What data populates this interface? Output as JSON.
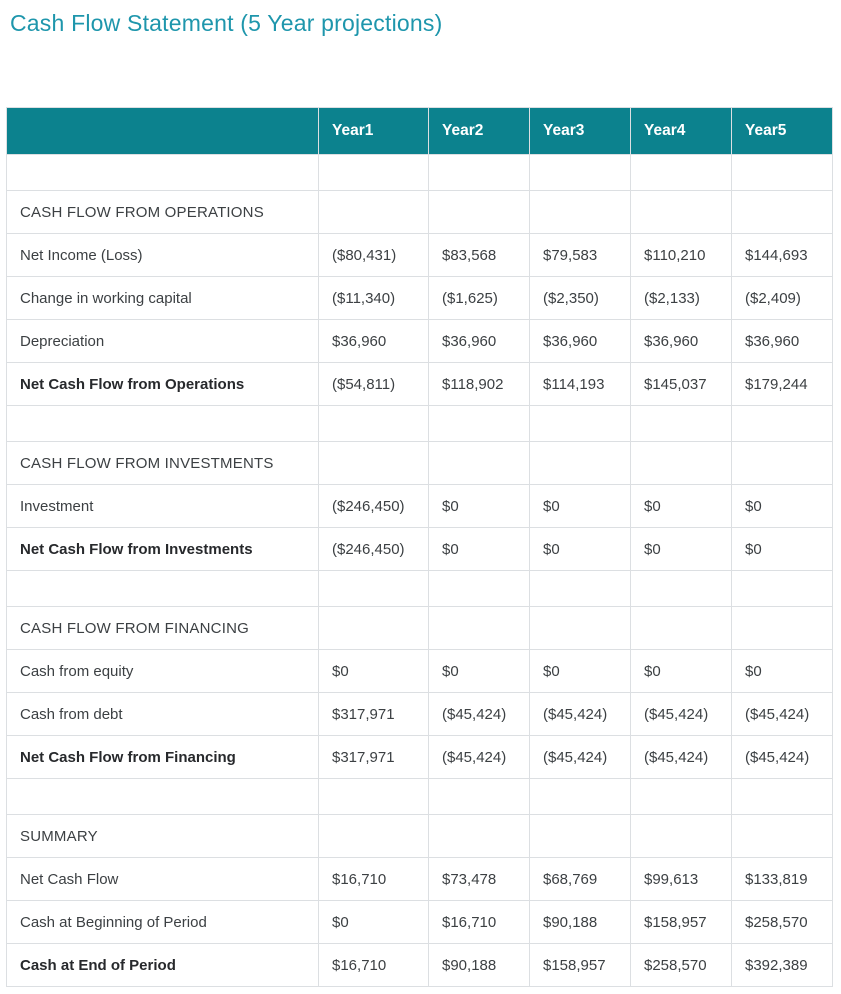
{
  "page": {
    "title": "Cash Flow Statement (5 Year projections)"
  },
  "colors": {
    "accent": "#0c828e",
    "title_text": "#1e96ac",
    "border": "#dcdfe2",
    "body_text": "#3c4043"
  },
  "table": {
    "columns": [
      "",
      "Year1",
      "Year2",
      "Year3",
      "Year4",
      "Year5"
    ],
    "rows": [
      {
        "type": "empty",
        "label": "",
        "values": [
          "",
          "",
          "",
          "",
          ""
        ]
      },
      {
        "type": "section",
        "label": "CASH FLOW FROM OPERATIONS",
        "values": [
          "",
          "",
          "",
          "",
          ""
        ]
      },
      {
        "type": "data",
        "label": "Net Income (Loss)",
        "values": [
          "($80,431)",
          "$83,568",
          "$79,583",
          "$110,210",
          "$144,693"
        ]
      },
      {
        "type": "data",
        "label": "Change in working capital",
        "values": [
          "($11,340)",
          "($1,625)",
          "($2,350)",
          "($2,133)",
          "($2,409)"
        ]
      },
      {
        "type": "data",
        "label": "Depreciation",
        "values": [
          "$36,960",
          "$36,960",
          "$36,960",
          "$36,960",
          "$36,960"
        ]
      },
      {
        "type": "total",
        "label": "Net Cash Flow from Operations",
        "values": [
          "($54,811)",
          "$118,902",
          "$114,193",
          "$145,037",
          "$179,244"
        ]
      },
      {
        "type": "empty",
        "label": "",
        "values": [
          "",
          "",
          "",
          "",
          ""
        ]
      },
      {
        "type": "section",
        "label": "CASH FLOW FROM INVESTMENTS",
        "values": [
          "",
          "",
          "",
          "",
          ""
        ]
      },
      {
        "type": "data",
        "label": "Investment",
        "values": [
          "($246,450)",
          "$0",
          "$0",
          "$0",
          "$0"
        ]
      },
      {
        "type": "total",
        "label": "Net Cash Flow from Investments",
        "values": [
          "($246,450)",
          "$0",
          "$0",
          "$0",
          "$0"
        ]
      },
      {
        "type": "empty",
        "label": "",
        "values": [
          "",
          "",
          "",
          "",
          ""
        ]
      },
      {
        "type": "section",
        "label": "CASH FLOW FROM FINANCING",
        "values": [
          "",
          "",
          "",
          "",
          ""
        ]
      },
      {
        "type": "data",
        "label": "Cash from equity",
        "values": [
          "$0",
          "$0",
          "$0",
          "$0",
          "$0"
        ]
      },
      {
        "type": "data",
        "label": "Cash from debt",
        "values": [
          "$317,971",
          "($45,424)",
          "($45,424)",
          "($45,424)",
          "($45,424)"
        ]
      },
      {
        "type": "total",
        "label": "Net Cash Flow from Financing",
        "values": [
          "$317,971",
          "($45,424)",
          "($45,424)",
          "($45,424)",
          "($45,424)"
        ]
      },
      {
        "type": "empty",
        "label": "",
        "values": [
          "",
          "",
          "",
          "",
          ""
        ]
      },
      {
        "type": "section",
        "label": "SUMMARY",
        "values": [
          "",
          "",
          "",
          "",
          ""
        ]
      },
      {
        "type": "data",
        "label": "Net Cash Flow",
        "values": [
          "$16,710",
          "$73,478",
          "$68,769",
          "$99,613",
          "$133,819"
        ]
      },
      {
        "type": "data",
        "label": "Cash at Beginning of Period",
        "values": [
          "$0",
          "$16,710",
          "$90,188",
          "$158,957",
          "$258,570"
        ]
      },
      {
        "type": "total",
        "label": "Cash at End of Period",
        "values": [
          "$16,710",
          "$90,188",
          "$158,957",
          "$258,570",
          "$392,389"
        ]
      }
    ]
  }
}
